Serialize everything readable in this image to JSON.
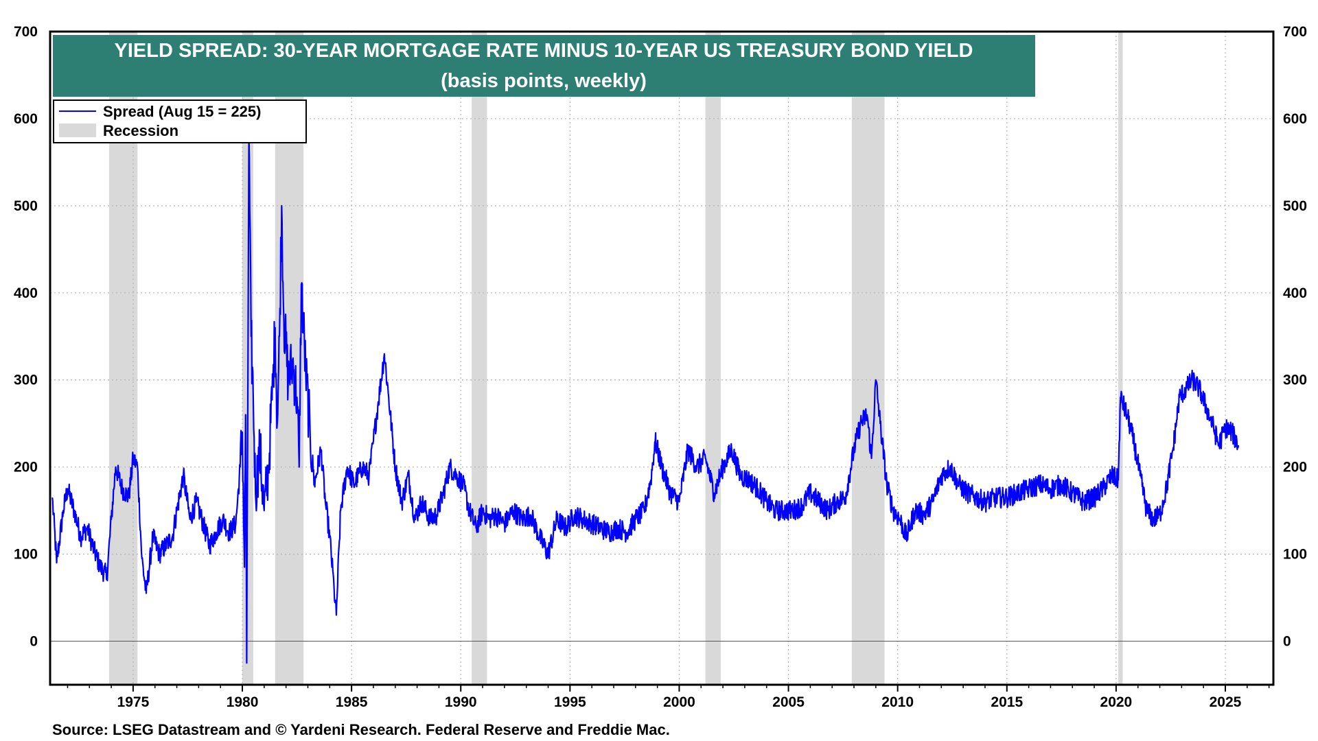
{
  "chart_data": {
    "type": "line",
    "title": "YIELD SPREAD: 30-YEAR MORTGAGE RATE MINUS 10-YEAR US TREASURY BOND YIELD",
    "subtitle": "(basis points, weekly)",
    "source": "Source: LSEG Datastream and © Yardeni Research. Federal Reserve and Freddie Mac.",
    "xlim": [
      1971.2,
      2027.2
    ],
    "ylim": [
      -50,
      700
    ],
    "x_ticks": [
      1975,
      1980,
      1985,
      1990,
      1995,
      2000,
      2005,
      2010,
      2015,
      2020,
      2025
    ],
    "y_ticks": [
      0,
      100,
      200,
      300,
      400,
      500,
      600,
      700
    ],
    "grid": true,
    "zero_line": true,
    "legend": {
      "placement": "top-left",
      "entries": [
        {
          "label": "Spread (Aug 15 = 225)",
          "kind": "line"
        },
        {
          "label": "Recession",
          "kind": "band"
        }
      ]
    },
    "recessions": [
      [
        1973.9,
        1975.2
      ],
      [
        1980.0,
        1980.5
      ],
      [
        1981.5,
        1982.8
      ],
      [
        1990.5,
        1991.2
      ],
      [
        2001.2,
        2001.9
      ],
      [
        2007.9,
        2009.4
      ],
      [
        2020.1,
        2020.3
      ]
    ],
    "series": [
      {
        "name": "Spread (Aug 15 = 225)",
        "color": "#0000ff",
        "points": [
          [
            1971.3,
            165
          ],
          [
            1971.5,
            90
          ],
          [
            1971.8,
            150
          ],
          [
            1972.0,
            175
          ],
          [
            1972.3,
            150
          ],
          [
            1972.6,
            120
          ],
          [
            1972.9,
            130
          ],
          [
            1973.2,
            105
          ],
          [
            1973.5,
            85
          ],
          [
            1973.8,
            75
          ],
          [
            1974.0,
            140
          ],
          [
            1974.2,
            200
          ],
          [
            1974.5,
            175
          ],
          [
            1974.8,
            165
          ],
          [
            1975.0,
            210
          ],
          [
            1975.2,
            200
          ],
          [
            1975.4,
            95
          ],
          [
            1975.6,
            55
          ],
          [
            1975.9,
            120
          ],
          [
            1976.2,
            100
          ],
          [
            1976.5,
            110
          ],
          [
            1976.8,
            120
          ],
          [
            1977.0,
            150
          ],
          [
            1977.3,
            190
          ],
          [
            1977.6,
            140
          ],
          [
            1977.9,
            160
          ],
          [
            1978.2,
            135
          ],
          [
            1978.5,
            110
          ],
          [
            1978.8,
            125
          ],
          [
            1979.1,
            140
          ],
          [
            1979.4,
            125
          ],
          [
            1979.7,
            135
          ],
          [
            1979.9,
            200
          ],
          [
            1980.0,
            240
          ],
          [
            1980.1,
            85
          ],
          [
            1980.15,
            260
          ],
          [
            1980.2,
            -25
          ],
          [
            1980.3,
            580
          ],
          [
            1980.4,
            350
          ],
          [
            1980.5,
            280
          ],
          [
            1980.6,
            170
          ],
          [
            1980.8,
            220
          ],
          [
            1981.0,
            150
          ],
          [
            1981.2,
            200
          ],
          [
            1981.4,
            300
          ],
          [
            1981.5,
            360
          ],
          [
            1981.6,
            250
          ],
          [
            1981.7,
            350
          ],
          [
            1981.8,
            500
          ],
          [
            1981.9,
            370
          ],
          [
            1982.1,
            300
          ],
          [
            1982.3,
            320
          ],
          [
            1982.5,
            280
          ],
          [
            1982.6,
            200
          ],
          [
            1982.7,
            410
          ],
          [
            1982.9,
            310
          ],
          [
            1983.1,
            240
          ],
          [
            1983.3,
            180
          ],
          [
            1983.6,
            220
          ],
          [
            1983.8,
            160
          ],
          [
            1984.0,
            120
          ],
          [
            1984.2,
            60
          ],
          [
            1984.3,
            30
          ],
          [
            1984.5,
            150
          ],
          [
            1984.8,
            200
          ],
          [
            1985.1,
            180
          ],
          [
            1985.5,
            200
          ],
          [
            1985.8,
            190
          ],
          [
            1986.0,
            230
          ],
          [
            1986.2,
            270
          ],
          [
            1986.5,
            330
          ],
          [
            1986.7,
            280
          ],
          [
            1987.0,
            200
          ],
          [
            1987.3,
            160
          ],
          [
            1987.6,
            190
          ],
          [
            1987.9,
            140
          ],
          [
            1988.2,
            160
          ],
          [
            1988.6,
            140
          ],
          [
            1988.9,
            145
          ],
          [
            1989.2,
            170
          ],
          [
            1989.5,
            200
          ],
          [
            1989.8,
            190
          ],
          [
            1990.1,
            180
          ],
          [
            1990.4,
            150
          ],
          [
            1990.7,
            130
          ],
          [
            1991.0,
            150
          ],
          [
            1991.3,
            140
          ],
          [
            1991.6,
            145
          ],
          [
            1992.0,
            135
          ],
          [
            1992.4,
            150
          ],
          [
            1992.8,
            140
          ],
          [
            1993.2,
            145
          ],
          [
            1993.6,
            120
          ],
          [
            1994.0,
            100
          ],
          [
            1994.4,
            140
          ],
          [
            1994.8,
            130
          ],
          [
            1995.2,
            145
          ],
          [
            1995.6,
            140
          ],
          [
            1996.0,
            135
          ],
          [
            1996.4,
            130
          ],
          [
            1996.8,
            125
          ],
          [
            1997.2,
            130
          ],
          [
            1997.6,
            125
          ],
          [
            1998.0,
            140
          ],
          [
            1998.4,
            150
          ],
          [
            1998.7,
            185
          ],
          [
            1998.9,
            230
          ],
          [
            1999.2,
            200
          ],
          [
            1999.6,
            170
          ],
          [
            2000.0,
            160
          ],
          [
            2000.4,
            220
          ],
          [
            2000.8,
            200
          ],
          [
            2001.2,
            210
          ],
          [
            2001.6,
            170
          ],
          [
            2002.0,
            200
          ],
          [
            2002.4,
            220
          ],
          [
            2002.8,
            190
          ],
          [
            2003.2,
            185
          ],
          [
            2003.6,
            175
          ],
          [
            2004.0,
            160
          ],
          [
            2004.4,
            150
          ],
          [
            2004.8,
            150
          ],
          [
            2005.2,
            150
          ],
          [
            2005.6,
            155
          ],
          [
            2006.0,
            170
          ],
          [
            2006.4,
            160
          ],
          [
            2006.8,
            150
          ],
          [
            2007.2,
            160
          ],
          [
            2007.6,
            165
          ],
          [
            2008.0,
            220
          ],
          [
            2008.3,
            250
          ],
          [
            2008.6,
            260
          ],
          [
            2008.8,
            210
          ],
          [
            2009.0,
            300
          ],
          [
            2009.2,
            250
          ],
          [
            2009.5,
            180
          ],
          [
            2009.8,
            150
          ],
          [
            2010.1,
            140
          ],
          [
            2010.4,
            120
          ],
          [
            2010.8,
            150
          ],
          [
            2011.2,
            145
          ],
          [
            2011.6,
            160
          ],
          [
            2012.0,
            190
          ],
          [
            2012.4,
            200
          ],
          [
            2012.8,
            180
          ],
          [
            2013.2,
            170
          ],
          [
            2013.6,
            165
          ],
          [
            2014.0,
            160
          ],
          [
            2014.5,
            165
          ],
          [
            2015.0,
            165
          ],
          [
            2015.5,
            170
          ],
          [
            2016.0,
            175
          ],
          [
            2016.5,
            180
          ],
          [
            2017.0,
            175
          ],
          [
            2017.5,
            180
          ],
          [
            2018.0,
            170
          ],
          [
            2018.5,
            160
          ],
          [
            2019.0,
            165
          ],
          [
            2019.4,
            175
          ],
          [
            2019.8,
            190
          ],
          [
            2020.1,
            185
          ],
          [
            2020.2,
            280
          ],
          [
            2020.5,
            260
          ],
          [
            2020.8,
            230
          ],
          [
            2021.1,
            190
          ],
          [
            2021.4,
            150
          ],
          [
            2021.7,
            140
          ],
          [
            2022.0,
            145
          ],
          [
            2022.3,
            175
          ],
          [
            2022.6,
            220
          ],
          [
            2022.9,
            280
          ],
          [
            2023.2,
            290
          ],
          [
            2023.5,
            300
          ],
          [
            2023.8,
            290
          ],
          [
            2024.1,
            270
          ],
          [
            2024.4,
            250
          ],
          [
            2024.7,
            225
          ],
          [
            2025.0,
            245
          ],
          [
            2025.3,
            240
          ],
          [
            2025.6,
            225
          ]
        ]
      }
    ]
  }
}
